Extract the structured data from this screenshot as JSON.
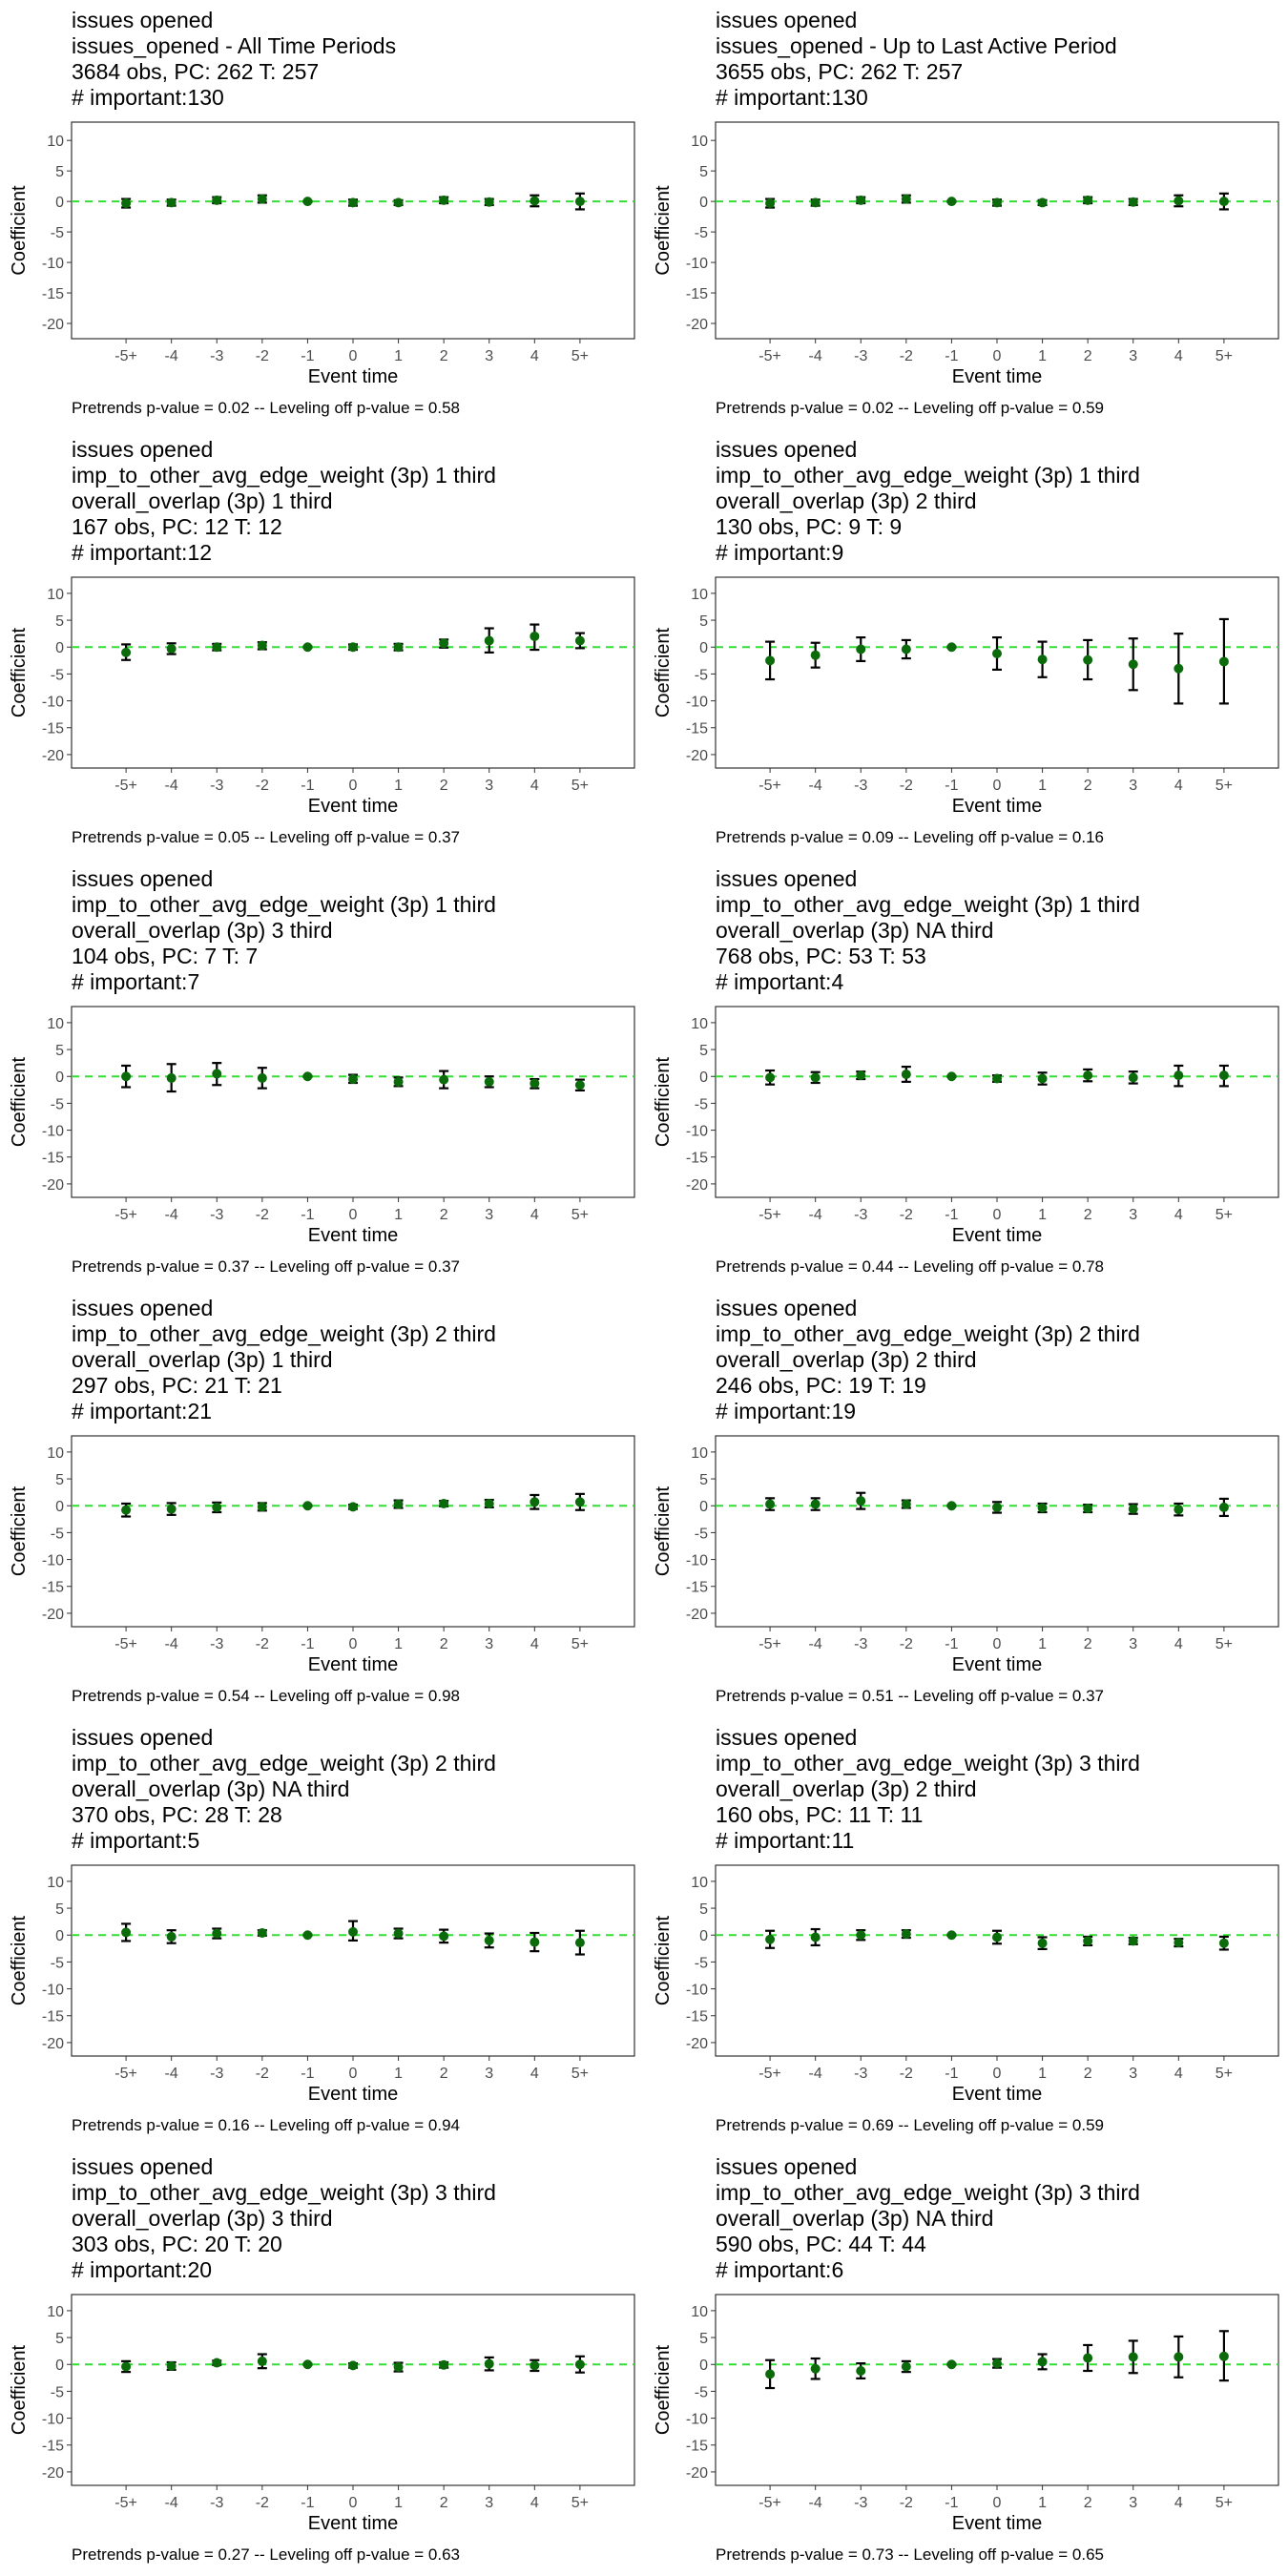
{
  "chart_data": [
    {
      "type": "scatter",
      "title_lines": [
        "issues opened",
        "issues_opened - All Time Periods",
        "3684 obs, PC: 262 T: 257",
        "# important:130"
      ],
      "xlabel": "Event time",
      "ylabel": "Coefficient",
      "categories": [
        "-5+",
        "-4",
        "-3",
        "-2",
        "-1",
        "0",
        "1",
        "2",
        "3",
        "4",
        "5+"
      ],
      "y_ticks": [
        "10",
        "5",
        "0",
        "-5",
        "-10",
        "-15",
        "-20"
      ],
      "ylim": [
        -22.5,
        13
      ],
      "reference_line": 0,
      "values": [
        -0.3,
        -0.2,
        0.2,
        0.4,
        0.0,
        -0.2,
        -0.2,
        0.2,
        -0.1,
        0.1,
        0.0
      ],
      "ci_low": [
        -1.0,
        -0.7,
        -0.3,
        -0.2,
        -0.1,
        -0.7,
        -0.6,
        -0.3,
        -0.6,
        -0.8,
        -1.3
      ],
      "ci_high": [
        0.4,
        0.3,
        0.7,
        1.0,
        0.1,
        0.3,
        0.2,
        0.7,
        0.4,
        1.0,
        1.3
      ],
      "footnote": "Pretrends p-value = 0.02 -- Leveling off p-value = 0.58"
    },
    {
      "type": "scatter",
      "title_lines": [
        "issues opened",
        "issues_opened - Up to Last Active Period",
        "3655 obs, PC: 262 T: 257",
        "# important:130"
      ],
      "xlabel": "Event time",
      "ylabel": "Coefficient",
      "categories": [
        "-5+",
        "-4",
        "-3",
        "-2",
        "-1",
        "0",
        "1",
        "2",
        "3",
        "4",
        "5+"
      ],
      "y_ticks": [
        "10",
        "5",
        "0",
        "-5",
        "-10",
        "-15",
        "-20"
      ],
      "ylim": [
        -22.5,
        13
      ],
      "reference_line": 0,
      "values": [
        -0.3,
        -0.2,
        0.2,
        0.4,
        0.0,
        -0.2,
        -0.2,
        0.2,
        -0.1,
        0.1,
        0.0
      ],
      "ci_low": [
        -1.0,
        -0.7,
        -0.3,
        -0.2,
        -0.1,
        -0.7,
        -0.6,
        -0.3,
        -0.6,
        -0.8,
        -1.3
      ],
      "ci_high": [
        0.4,
        0.3,
        0.7,
        1.0,
        0.1,
        0.3,
        0.2,
        0.7,
        0.4,
        1.0,
        1.3
      ],
      "footnote": "Pretrends p-value = 0.02 -- Leveling off p-value = 0.59"
    },
    {
      "type": "scatter",
      "title_lines": [
        "issues opened",
        "imp_to_other_avg_edge_weight (3p) 1 third",
        "overall_overlap (3p) 1 third",
        "167 obs, PC: 12 T: 12",
        "# important:12"
      ],
      "xlabel": "Event time",
      "ylabel": "Coefficient",
      "categories": [
        "-5+",
        "-4",
        "-3",
        "-2",
        "-1",
        "0",
        "1",
        "2",
        "3",
        "4",
        "5+"
      ],
      "y_ticks": [
        "10",
        "5",
        "0",
        "-5",
        "-10",
        "-15",
        "-20"
      ],
      "ylim": [
        -22.5,
        13
      ],
      "reference_line": 0,
      "values": [
        -1.0,
        -0.3,
        0.0,
        0.3,
        0.0,
        0.0,
        0.0,
        0.7,
        1.2,
        2.0,
        1.2
      ],
      "ci_low": [
        -2.4,
        -1.3,
        -0.6,
        -0.4,
        -0.1,
        -0.5,
        -0.6,
        -0.1,
        -1.0,
        -0.5,
        -0.2
      ],
      "ci_high": [
        0.5,
        0.7,
        0.6,
        0.9,
        0.1,
        0.5,
        0.6,
        1.4,
        3.5,
        4.2,
        2.6
      ],
      "footnote": "Pretrends p-value = 0.05 -- Leveling off p-value = 0.37"
    },
    {
      "type": "scatter",
      "title_lines": [
        "issues opened",
        "imp_to_other_avg_edge_weight (3p) 1 third",
        "overall_overlap (3p) 2 third",
        "130 obs, PC: 9 T: 9",
        "# important:9"
      ],
      "xlabel": "Event time",
      "ylabel": "Coefficient",
      "categories": [
        "-5+",
        "-4",
        "-3",
        "-2",
        "-1",
        "0",
        "1",
        "2",
        "3",
        "4",
        "5+"
      ],
      "y_ticks": [
        "10",
        "5",
        "0",
        "-5",
        "-10",
        "-15",
        "-20"
      ],
      "ylim": [
        -22.5,
        13
      ],
      "reference_line": 0,
      "values": [
        -2.5,
        -1.5,
        -0.4,
        -0.4,
        0.0,
        -1.2,
        -2.3,
        -2.4,
        -3.2,
        -4.0,
        -2.7
      ],
      "ci_low": [
        -6.0,
        -3.8,
        -2.6,
        -2.1,
        -0.1,
        -4.2,
        -5.6,
        -6.0,
        -8.0,
        -10.5,
        -10.5
      ],
      "ci_high": [
        1.0,
        0.8,
        1.8,
        1.3,
        0.1,
        1.8,
        1.0,
        1.3,
        1.6,
        2.5,
        5.2
      ],
      "footnote": "Pretrends p-value = 0.09 -- Leveling off p-value = 0.16"
    },
    {
      "type": "scatter",
      "title_lines": [
        "issues opened",
        "imp_to_other_avg_edge_weight (3p) 1 third",
        "overall_overlap (3p) 3 third",
        "104 obs, PC: 7 T: 7",
        "# important:7"
      ],
      "xlabel": "Event time",
      "ylabel": "Coefficient",
      "categories": [
        "-5+",
        "-4",
        "-3",
        "-2",
        "-1",
        "0",
        "1",
        "2",
        "3",
        "4",
        "5+"
      ],
      "y_ticks": [
        "10",
        "5",
        "0",
        "-5",
        "-10",
        "-15",
        "-20"
      ],
      "ylim": [
        -22.5,
        13
      ],
      "reference_line": 0,
      "values": [
        0.0,
        -0.3,
        0.5,
        -0.3,
        0.0,
        -0.5,
        -1.0,
        -0.6,
        -1.0,
        -1.3,
        -1.6
      ],
      "ci_low": [
        -2.0,
        -2.8,
        -1.6,
        -2.2,
        -0.1,
        -1.2,
        -1.8,
        -2.2,
        -2.0,
        -2.2,
        -2.6
      ],
      "ci_high": [
        2.0,
        2.3,
        2.5,
        1.6,
        0.1,
        0.3,
        -0.2,
        1.0,
        0.0,
        -0.5,
        -0.6
      ],
      "footnote": "Pretrends p-value = 0.37 -- Leveling off p-value = 0.37"
    },
    {
      "type": "scatter",
      "title_lines": [
        "issues opened",
        "imp_to_other_avg_edge_weight (3p) 1 third",
        "overall_overlap (3p) NA third",
        "768 obs, PC: 53 T: 53",
        "# important:4"
      ],
      "xlabel": "Event time",
      "ylabel": "Coefficient",
      "categories": [
        "-5+",
        "-4",
        "-3",
        "-2",
        "-1",
        "0",
        "1",
        "2",
        "3",
        "4",
        "5+"
      ],
      "y_ticks": [
        "10",
        "5",
        "0",
        "-5",
        "-10",
        "-15",
        "-20"
      ],
      "ylim": [
        -22.5,
        13
      ],
      "reference_line": 0,
      "values": [
        -0.2,
        -0.2,
        0.2,
        0.4,
        0.0,
        -0.4,
        -0.4,
        0.2,
        -0.2,
        0.2,
        0.2
      ],
      "ci_low": [
        -1.5,
        -1.2,
        -0.5,
        -1.0,
        -0.1,
        -1.0,
        -1.5,
        -0.9,
        -1.3,
        -1.8,
        -1.8
      ],
      "ci_high": [
        1.1,
        0.8,
        0.9,
        1.8,
        0.1,
        0.2,
        0.7,
        1.3,
        0.9,
        2.0,
        2.0
      ],
      "footnote": "Pretrends p-value = 0.44 -- Leveling off p-value = 0.78"
    },
    {
      "type": "scatter",
      "title_lines": [
        "issues opened",
        "imp_to_other_avg_edge_weight (3p) 2 third",
        "overall_overlap (3p) 1 third",
        "297 obs, PC: 21 T: 21",
        "# important:21"
      ],
      "xlabel": "Event time",
      "ylabel": "Coefficient",
      "categories": [
        "-5+",
        "-4",
        "-3",
        "-2",
        "-1",
        "0",
        "1",
        "2",
        "3",
        "4",
        "5+"
      ],
      "y_ticks": [
        "10",
        "5",
        "0",
        "-5",
        "-10",
        "-15",
        "-20"
      ],
      "ylim": [
        -22.5,
        13
      ],
      "reference_line": 0,
      "values": [
        -0.8,
        -0.6,
        -0.3,
        -0.2,
        0.0,
        -0.2,
        0.3,
        0.4,
        0.4,
        0.7,
        0.7
      ],
      "ci_low": [
        -2.0,
        -1.7,
        -1.2,
        -0.9,
        -0.1,
        -0.6,
        -0.4,
        -0.1,
        -0.3,
        -0.6,
        -0.8
      ],
      "ci_high": [
        0.4,
        0.5,
        0.6,
        0.5,
        0.1,
        0.2,
        1.0,
        0.9,
        1.1,
        2.0,
        2.2
      ],
      "footnote": "Pretrends p-value = 0.54 -- Leveling off p-value = 0.98"
    },
    {
      "type": "scatter",
      "title_lines": [
        "issues opened",
        "imp_to_other_avg_edge_weight (3p) 2 third",
        "overall_overlap (3p) 2 third",
        "246 obs, PC: 19 T: 19",
        "# important:19"
      ],
      "xlabel": "Event time",
      "ylabel": "Coefficient",
      "categories": [
        "-5+",
        "-4",
        "-3",
        "-2",
        "-1",
        "0",
        "1",
        "2",
        "3",
        "4",
        "5+"
      ],
      "y_ticks": [
        "10",
        "5",
        "0",
        "-5",
        "-10",
        "-15",
        "-20"
      ],
      "ylim": [
        -22.5,
        13
      ],
      "reference_line": 0,
      "values": [
        0.3,
        0.3,
        0.9,
        0.3,
        0.0,
        -0.3,
        -0.4,
        -0.5,
        -0.6,
        -0.7,
        -0.3
      ],
      "ci_low": [
        -0.8,
        -0.8,
        -0.6,
        -0.4,
        -0.1,
        -1.3,
        -1.2,
        -1.2,
        -1.5,
        -1.8,
        -1.9
      ],
      "ci_high": [
        1.4,
        1.4,
        2.4,
        1.0,
        0.1,
        0.7,
        0.4,
        0.2,
        0.3,
        0.4,
        1.3
      ],
      "footnote": "Pretrends p-value = 0.51 -- Leveling off p-value = 0.37"
    },
    {
      "type": "scatter",
      "title_lines": [
        "issues opened",
        "imp_to_other_avg_edge_weight (3p) 2 third",
        "overall_overlap (3p) NA third",
        "370 obs, PC: 28 T: 28",
        "# important:5"
      ],
      "xlabel": "Event time",
      "ylabel": "Coefficient",
      "categories": [
        "-5+",
        "-4",
        "-3",
        "-2",
        "-1",
        "0",
        "1",
        "2",
        "3",
        "4",
        "5+"
      ],
      "y_ticks": [
        "10",
        "5",
        "0",
        "-5",
        "-10",
        "-15",
        "-20"
      ],
      "ylim": [
        -22.5,
        13
      ],
      "reference_line": 0,
      "values": [
        0.5,
        -0.3,
        0.3,
        0.4,
        0.0,
        0.6,
        0.3,
        -0.2,
        -1.0,
        -1.3,
        -1.4
      ],
      "ci_low": [
        -1.1,
        -1.5,
        -0.6,
        -0.1,
        -0.1,
        -1.0,
        -0.6,
        -1.4,
        -2.3,
        -3.0,
        -3.6
      ],
      "ci_high": [
        2.1,
        0.9,
        1.2,
        0.9,
        0.1,
        2.6,
        1.2,
        1.0,
        0.3,
        0.4,
        0.8
      ],
      "footnote": "Pretrends p-value = 0.16 -- Leveling off p-value = 0.94"
    },
    {
      "type": "scatter",
      "title_lines": [
        "issues opened",
        "imp_to_other_avg_edge_weight (3p) 3 third",
        "overall_overlap (3p) 2 third",
        "160 obs, PC: 11 T: 11",
        "# important:11"
      ],
      "xlabel": "Event time",
      "ylabel": "Coefficient",
      "categories": [
        "-5+",
        "-4",
        "-3",
        "-2",
        "-1",
        "0",
        "1",
        "2",
        "3",
        "4",
        "5+"
      ],
      "y_ticks": [
        "10",
        "5",
        "0",
        "-5",
        "-10",
        "-15",
        "-20"
      ],
      "ylim": [
        -22.5,
        13
      ],
      "reference_line": 0,
      "values": [
        -0.8,
        -0.4,
        0.0,
        0.2,
        0.0,
        -0.4,
        -1.5,
        -1.1,
        -1.1,
        -1.4,
        -1.5
      ],
      "ci_low": [
        -2.4,
        -1.9,
        -0.9,
        -0.5,
        -0.1,
        -1.6,
        -2.6,
        -1.9,
        -1.7,
        -2.1,
        -2.7
      ],
      "ci_high": [
        0.8,
        1.1,
        0.9,
        0.9,
        0.1,
        0.8,
        -0.4,
        -0.3,
        -0.5,
        -0.7,
        -0.3
      ],
      "footnote": "Pretrends p-value = 0.69 -- Leveling off p-value = 0.59"
    },
    {
      "type": "scatter",
      "title_lines": [
        "issues opened",
        "imp_to_other_avg_edge_weight (3p) 3 third",
        "overall_overlap (3p) 3 third",
        "303 obs, PC: 20 T: 20",
        "# important:20"
      ],
      "xlabel": "Event time",
      "ylabel": "Coefficient",
      "categories": [
        "-5+",
        "-4",
        "-3",
        "-2",
        "-1",
        "0",
        "1",
        "2",
        "3",
        "4",
        "5+"
      ],
      "y_ticks": [
        "10",
        "5",
        "0",
        "-5",
        "-10",
        "-15",
        "-20"
      ],
      "ylim": [
        -22.5,
        13
      ],
      "reference_line": 0,
      "values": [
        -0.4,
        -0.3,
        0.3,
        0.6,
        0.0,
        -0.2,
        -0.5,
        -0.1,
        0.1,
        -0.2,
        0.0
      ],
      "ci_low": [
        -1.4,
        -1.0,
        -0.1,
        -0.7,
        -0.1,
        -0.6,
        -1.3,
        -0.6,
        -1.1,
        -1.2,
        -1.5
      ],
      "ci_high": [
        0.6,
        0.4,
        0.7,
        1.9,
        0.1,
        0.2,
        0.3,
        0.4,
        1.3,
        0.8,
        1.5
      ],
      "footnote": "Pretrends p-value = 0.27 -- Leveling off p-value = 0.63"
    },
    {
      "type": "scatter",
      "title_lines": [
        "issues opened",
        "imp_to_other_avg_edge_weight (3p) 3 third",
        "overall_overlap (3p) NA third",
        "590 obs, PC: 44 T: 44",
        "# important:6"
      ],
      "xlabel": "Event time",
      "ylabel": "Coefficient",
      "categories": [
        "-5+",
        "-4",
        "-3",
        "-2",
        "-1",
        "0",
        "1",
        "2",
        "3",
        "4",
        "5+"
      ],
      "y_ticks": [
        "10",
        "5",
        "0",
        "-5",
        "-10",
        "-15",
        "-20"
      ],
      "ylim": [
        -22.5,
        13
      ],
      "reference_line": 0,
      "values": [
        -1.8,
        -0.8,
        -1.2,
        -0.4,
        0.0,
        0.2,
        0.5,
        1.2,
        1.4,
        1.4,
        1.5
      ],
      "ci_low": [
        -4.4,
        -2.7,
        -2.6,
        -1.4,
        -0.1,
        -0.6,
        -0.9,
        -1.2,
        -1.6,
        -2.4,
        -3.0
      ],
      "ci_high": [
        0.8,
        1.1,
        0.2,
        0.6,
        0.1,
        1.0,
        1.9,
        3.6,
        4.4,
        5.2,
        6.2
      ],
      "footnote": "Pretrends p-value = 0.73 -- Leveling off p-value = 0.65"
    }
  ],
  "colors": {
    "point": "#0b6b0b",
    "errorbar": "#000000",
    "reference_line": "#33dd33",
    "axis_text": "#4d4d4d",
    "panel_border": "#333333"
  }
}
